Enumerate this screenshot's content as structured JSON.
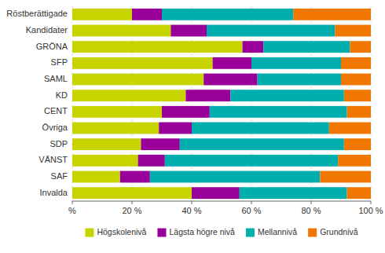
{
  "chart_data": {
    "type": "bar",
    "orientation": "horizontal",
    "stacked": true,
    "grid": true,
    "legend": "bottom",
    "categories": [
      "Röstberättigade",
      "Kandidater",
      "GRÖNA",
      "SFP",
      "SAML",
      "KD",
      "CENT",
      "Övriga",
      "SDP",
      "VÄNST",
      "SAF",
      "Invalda"
    ],
    "series": [
      {
        "name": "Högskolenivå",
        "color": "#c8d400",
        "values": [
          20,
          33,
          57,
          47,
          44,
          38,
          30,
          29,
          23,
          22,
          16,
          40
        ]
      },
      {
        "name": "Lägsta högre nivå",
        "color": "#990099",
        "values": [
          10,
          12,
          7,
          13,
          18,
          15,
          16,
          11,
          13,
          9,
          10,
          16
        ]
      },
      {
        "name": "Mellannivå",
        "color": "#00aeae",
        "values": [
          44,
          43,
          29,
          30,
          28,
          38,
          46,
          46,
          55,
          58,
          57,
          36
        ]
      },
      {
        "name": "Grundnivå",
        "color": "#f07800",
        "values": [
          26,
          12,
          7,
          10,
          10,
          9,
          8,
          14,
          9,
          11,
          17,
          8
        ]
      }
    ],
    "xlim": [
      0,
      100
    ],
    "xticks": [
      {
        "value": 0,
        "label": "%"
      },
      {
        "value": 20,
        "label": "20 %"
      },
      {
        "value": 40,
        "label": "40 %"
      },
      {
        "value": 60,
        "label": "60 %"
      },
      {
        "value": 80,
        "label": "80 %"
      },
      {
        "value": 100,
        "label": "100 %"
      }
    ]
  }
}
